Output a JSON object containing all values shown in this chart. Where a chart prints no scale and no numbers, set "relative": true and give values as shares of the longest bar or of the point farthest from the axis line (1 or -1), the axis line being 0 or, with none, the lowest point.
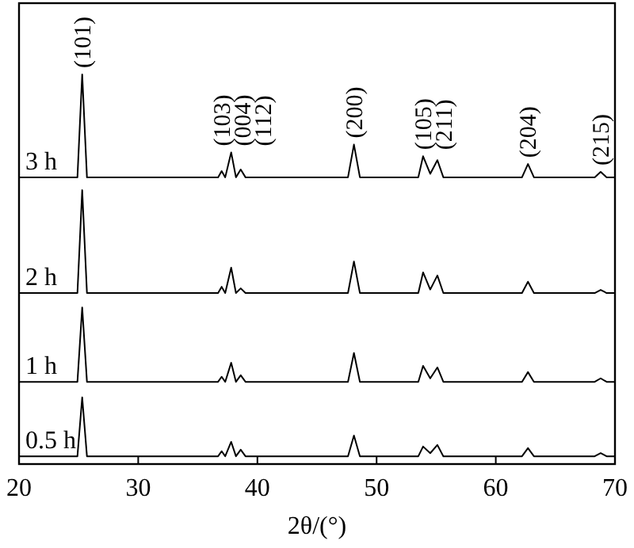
{
  "chart_data": {
    "type": "line",
    "relative": true,
    "xlabel": "2θ/(°)",
    "xlim": [
      20,
      70
    ],
    "xticks": [
      20,
      30,
      40,
      50,
      60,
      70
    ],
    "grid": false,
    "legend": false,
    "marker": "none",
    "line_style": "solid",
    "x": [
      20,
      24.9,
      25.3,
      25.7,
      36.7,
      37.0,
      37.3,
      37.8,
      38.2,
      38.6,
      39.0,
      47.6,
      48.1,
      48.6,
      53.5,
      53.9,
      54.5,
      55.1,
      55.6,
      62.2,
      62.7,
      63.2,
      68.3,
      68.8,
      69.3,
      70
    ],
    "series": [
      {
        "name": "3 h",
        "color": "#000000",
        "values": [
          0.736,
          0.736,
          1.0,
          0.736,
          0.736,
          0.752,
          0.736,
          0.8,
          0.736,
          0.756,
          0.736,
          0.736,
          0.82,
          0.736,
          0.736,
          0.79,
          0.745,
          0.78,
          0.736,
          0.736,
          0.77,
          0.736,
          0.736,
          0.75,
          0.736,
          0.736
        ]
      },
      {
        "name": "2 h",
        "color": "#000000",
        "values": [
          0.439,
          0.439,
          0.703,
          0.439,
          0.439,
          0.455,
          0.439,
          0.504,
          0.439,
          0.451,
          0.439,
          0.439,
          0.52,
          0.439,
          0.439,
          0.492,
          0.448,
          0.484,
          0.439,
          0.439,
          0.468,
          0.439,
          0.439,
          0.447,
          0.439,
          0.439
        ]
      },
      {
        "name": "1 h",
        "color": "#000000",
        "values": [
          0.211,
          0.211,
          0.402,
          0.211,
          0.211,
          0.224,
          0.211,
          0.26,
          0.211,
          0.228,
          0.211,
          0.211,
          0.285,
          0.211,
          0.211,
          0.252,
          0.22,
          0.248,
          0.211,
          0.211,
          0.236,
          0.211,
          0.211,
          0.22,
          0.211,
          0.211
        ]
      },
      {
        "name": "0.5 h",
        "color": "#000000",
        "values": [
          0.02,
          0.02,
          0.171,
          0.02,
          0.02,
          0.033,
          0.02,
          0.057,
          0.02,
          0.037,
          0.02,
          0.02,
          0.073,
          0.02,
          0.02,
          0.045,
          0.028,
          0.049,
          0.02,
          0.02,
          0.041,
          0.02,
          0.02,
          0.028,
          0.02,
          0.02
        ]
      }
    ],
    "annotations": [
      {
        "text": "(101)",
        "x": 25.3,
        "y": 1.0
      },
      {
        "text": "(103)",
        "x": 37.0,
        "y": 0.752
      },
      {
        "text": "(004)",
        "x": 37.8,
        "y": 0.8
      },
      {
        "text": "(112)",
        "x": 38.6,
        "y": 0.756
      },
      {
        "text": "(200)",
        "x": 48.1,
        "y": 0.82
      },
      {
        "text": "(105)",
        "x": 53.9,
        "y": 0.79
      },
      {
        "text": "(211)",
        "x": 55.1,
        "y": 0.78
      },
      {
        "text": "(204)",
        "x": 62.7,
        "y": 0.77
      },
      {
        "text": "(215)",
        "x": 68.8,
        "y": 0.75
      }
    ]
  }
}
